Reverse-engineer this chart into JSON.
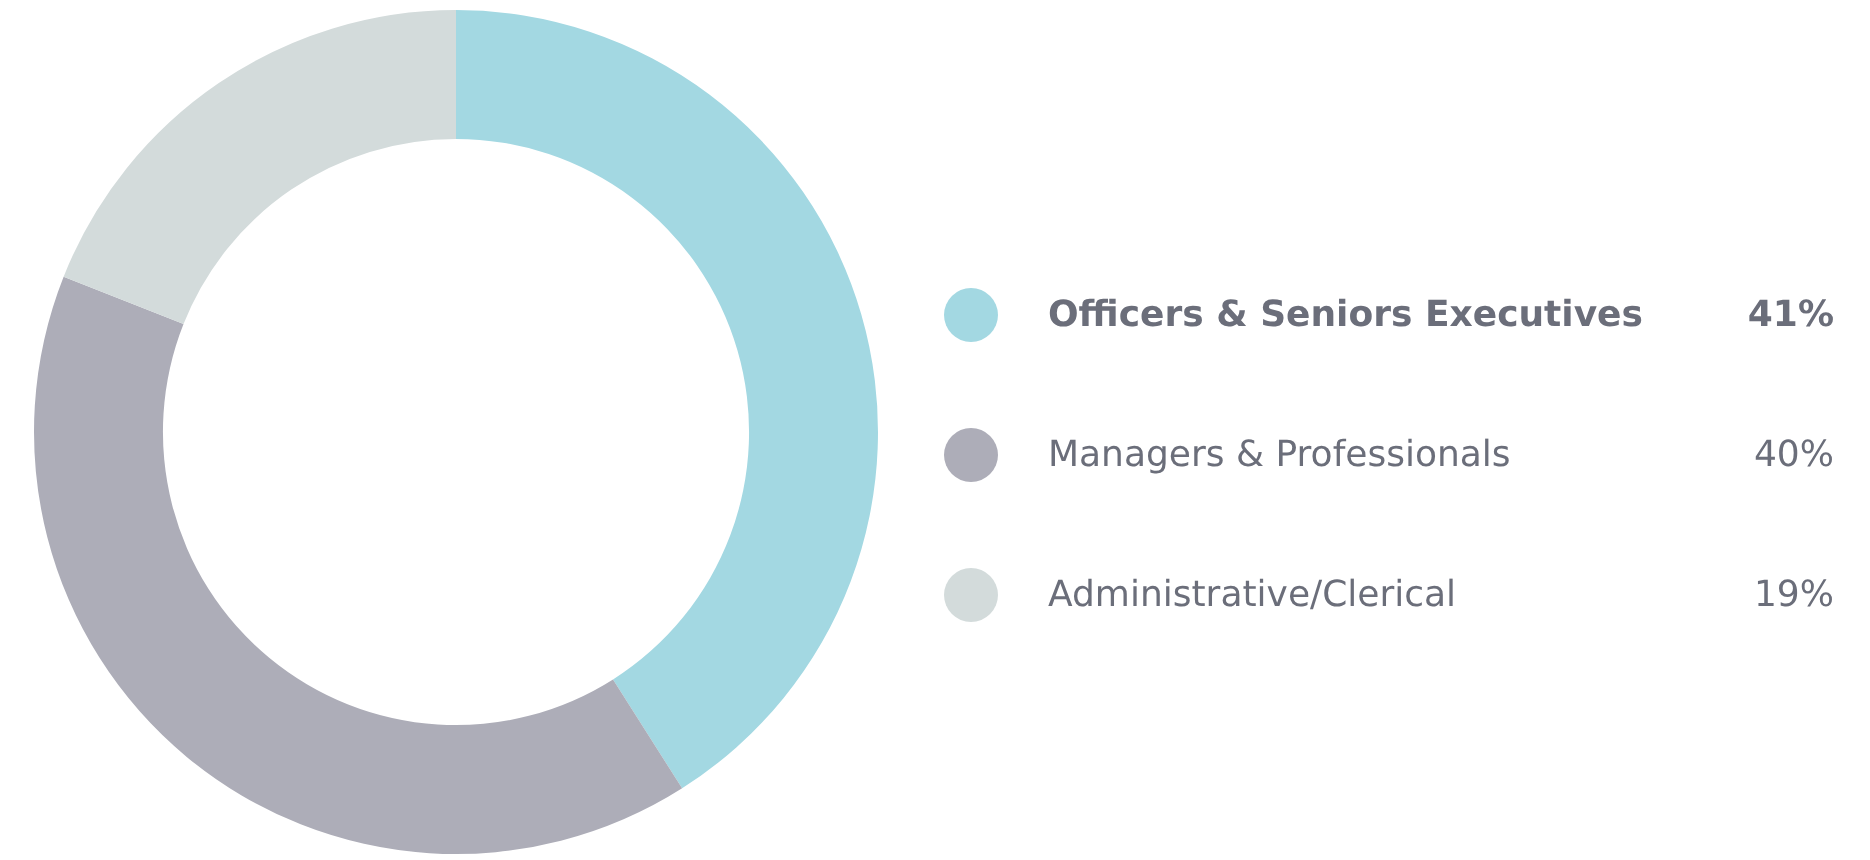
{
  "chart_data": {
    "type": "donut",
    "categories": [
      "Officers & Seniors Executives",
      "Managers & Professionals",
      "Administrative/Clerical"
    ],
    "values": [
      41,
      40,
      19
    ],
    "colors": [
      "#a3d8e2",
      "#adadb8",
      "#d3dbdb"
    ],
    "value_labels": [
      "41%",
      "40%",
      "19%"
    ],
    "legend": "right"
  }
}
